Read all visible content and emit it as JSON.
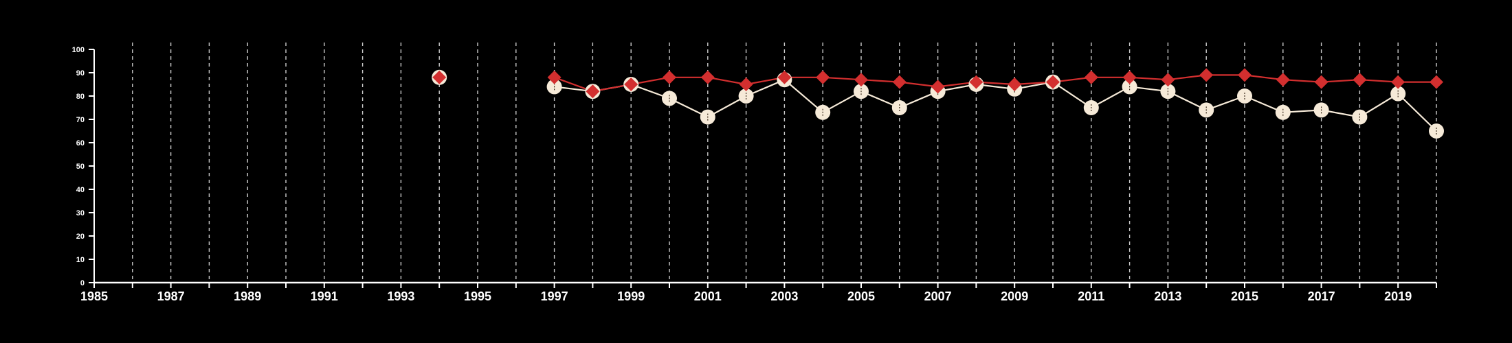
{
  "chart_data": {
    "type": "line",
    "title": "",
    "xlabel": "",
    "ylabel": "",
    "xlim": [
      1985,
      2020
    ],
    "ylim": [
      0,
      100
    ],
    "x_ticks": [
      1985,
      1986,
      1987,
      1988,
      1989,
      1990,
      1991,
      1992,
      1993,
      1994,
      1995,
      1996,
      1997,
      1998,
      1999,
      2000,
      2001,
      2002,
      2003,
      2004,
      2005,
      2006,
      2007,
      2008,
      2009,
      2010,
      2011,
      2012,
      2013,
      2014,
      2015,
      2016,
      2017,
      2018,
      2019,
      2020
    ],
    "x_tick_labels": [
      "1985",
      "1987",
      "1989",
      "1991",
      "1993",
      "1995",
      "1997",
      "1999",
      "2001",
      "2003",
      "2005",
      "2007",
      "2009",
      "2011",
      "2013",
      "2015",
      "2017",
      "2019"
    ],
    "y_tick_labels": [
      "0",
      "10",
      "20",
      "30",
      "40",
      "50",
      "60",
      "70",
      "80",
      "90",
      "100"
    ],
    "grid": "vertical dashed",
    "legend": "none",
    "colors": {
      "background": "#000000",
      "axis": "#ffffff",
      "grid": "#cccccc",
      "series_circle": "#f6ead8",
      "series_diamond": "#d32f2f"
    },
    "series": [
      {
        "marker": "circle",
        "color": "#f6ead8",
        "x": [
          1994,
          1997,
          1998,
          1999,
          2000,
          2001,
          2002,
          2003,
          2004,
          2005,
          2006,
          2007,
          2008,
          2009,
          2010,
          2011,
          2012,
          2013,
          2014,
          2015,
          2016,
          2017,
          2018,
          2019,
          2020
        ],
        "values": [
          88,
          84,
          82,
          85,
          79,
          71,
          80,
          87,
          73,
          82,
          75,
          82,
          85,
          83,
          86,
          75,
          84,
          82,
          74,
          80,
          73,
          74,
          71,
          81,
          65
        ]
      },
      {
        "marker": "diamond",
        "color": "#d32f2f",
        "x": [
          1994,
          1997,
          1998,
          1999,
          2000,
          2001,
          2002,
          2003,
          2004,
          2005,
          2006,
          2007,
          2008,
          2009,
          2010,
          2011,
          2012,
          2013,
          2014,
          2015,
          2016,
          2017,
          2018,
          2019,
          2020
        ],
        "values": [
          88,
          88,
          82,
          85,
          88,
          88,
          85,
          88,
          88,
          87,
          86,
          84,
          86,
          85,
          86,
          88,
          88,
          87,
          89,
          89,
          87,
          86,
          87,
          86,
          86
        ]
      }
    ]
  }
}
